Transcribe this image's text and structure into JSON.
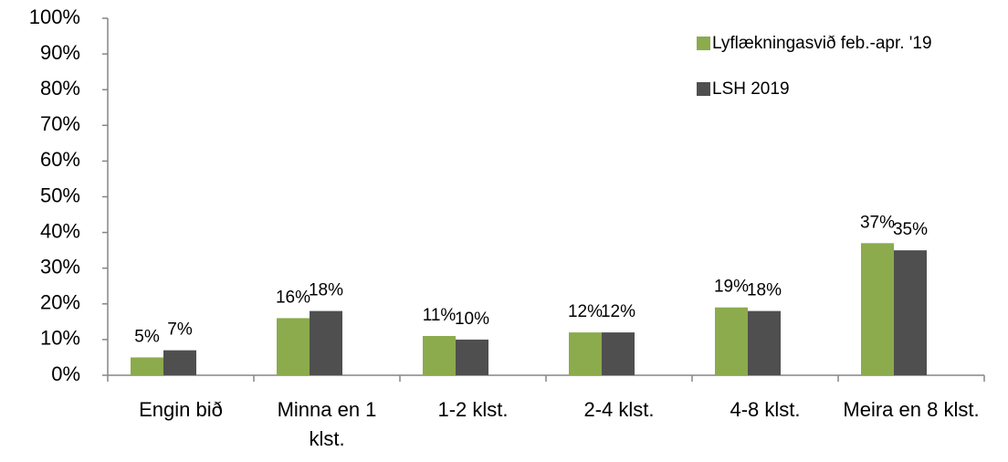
{
  "chart_data": {
    "type": "bar",
    "categories": [
      "Engin bið",
      "Minna en 1 klst.",
      "1-2 klst.",
      "2-4 klst.",
      "4-8 klst.",
      "Meira en 8 klst."
    ],
    "series": [
      {
        "name": "Lyflækningasvið feb.-apr. '19",
        "color": "#8bab4d",
        "values": [
          5,
          16,
          11,
          12,
          19,
          37
        ],
        "value_labels": [
          "5%",
          "16%",
          "11%",
          "12%",
          "19%",
          "37%"
        ]
      },
      {
        "name": "LSH 2019",
        "color": "#4f4f4f",
        "values": [
          7,
          18,
          10,
          12,
          18,
          35
        ],
        "value_labels": [
          "7%",
          "18%",
          "10%",
          "12%",
          "18%",
          "35%"
        ]
      }
    ],
    "ylim": [
      0,
      100
    ],
    "yticks": [
      {
        "value": 0,
        "label": "0%"
      },
      {
        "value": 10,
        "label": "10%"
      },
      {
        "value": 20,
        "label": "20%"
      },
      {
        "value": 30,
        "label": "30%"
      },
      {
        "value": 40,
        "label": "40%"
      },
      {
        "value": 50,
        "label": "50%"
      },
      {
        "value": 60,
        "label": "60%"
      },
      {
        "value": 70,
        "label": "70%"
      },
      {
        "value": 80,
        "label": "80%"
      },
      {
        "value": 90,
        "label": "90%"
      },
      {
        "value": 100,
        "label": "100%"
      }
    ],
    "legend": "top-right"
  }
}
